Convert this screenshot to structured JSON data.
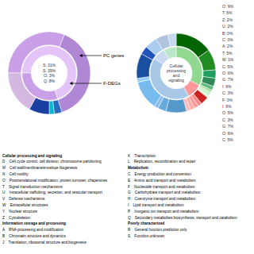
{
  "chart_data": [
    {
      "type": "pie",
      "series": [
        {
          "name": "PC genes",
          "values": [
            31,
            39,
            3,
            2,
            8,
            17
          ],
          "colors": [
            "#c9a0e8",
            "#b087d4",
            "#2a6abf",
            "#00b8d4",
            "#1a3fa0",
            "#d4b8e0"
          ]
        },
        {
          "name": "F-DEGs",
          "values": [
            70,
            30
          ],
          "colors": [
            "#e4c4f8",
            "#c9a0e8"
          ]
        }
      ],
      "annotations": [
        "S: 31%",
        "S: 39%",
        "O: 3%",
        "Q: 8%"
      ]
    },
    {
      "type": "pie",
      "title": "Cellular\nprocessing\nand\nsignaling",
      "series": [
        {
          "values": [
            9.0,
            5.0,
            2.0,
            2.0,
            1.0,
            0.5,
            0.5,
            0.5,
            0.5,
            2.0,
            1.0,
            1.0,
            1.0,
            1.0,
            5.0,
            2.0,
            1.0,
            7.0,
            1.0,
            6.0,
            2.0,
            3.0,
            3.0,
            2.0
          ],
          "colors": [
            "#006400",
            "#228B22",
            "#20a060",
            "#2E8B57",
            "#60b880",
            "#a0d8a0",
            "#b8e8b8",
            "#c8f0c8",
            "#d8f8d8",
            "#cc2222",
            "#ff8888",
            "#ff9999",
            "#ffaaaa",
            "#ffbbbb",
            "#5599cc",
            "#66aadd",
            "#88bbee",
            "#77bbee",
            "#99ccff",
            "#1a4fa0",
            "#2255bb",
            "#aaccee",
            "#b0c4de",
            "#c8d8f0"
          ]
        },
        {
          "values": [
            21.0,
            6.0,
            27.0,
            5.0,
            5.0
          ],
          "colors": [
            "#90D890",
            "#ff9999",
            "#a8c8e8",
            "#c8d8f0",
            "#b8e8c8"
          ]
        }
      ],
      "annotations": [
        "O: 9%",
        "T: 5%",
        "Z: 2%",
        "U: 2%",
        "B: 0%",
        "C: 0%",
        "A: 2%",
        "T: 5%",
        "M: 1%",
        "C: 5%",
        "O: 6%",
        "G: 7%",
        "I: 6%",
        "C: 3%",
        "F: 0%",
        "I: 6%",
        "O: 5%",
        "C: 3%",
        "G: 7%",
        "O: 6%",
        "C: 5%"
      ]
    },
    {
      "type": "text",
      "annotations": [
        "Cellular processing and signaling",
        "D    Cell cycle control, cell division, chromosome partitioning",
        "M    Cell wall/membrane/envelope biogenesis",
        "N    Cell motility",
        "O    Posttranslational modification, protein turnover, chaperones",
        "T    Signal transduction mechanisms",
        "U    Intracellular trafficking, secretion, and vesicular transport",
        "V    Defense mechanisms",
        "W    Extracellular structures",
        "Y    Nuclear structure",
        "Z    Cytoskeleton",
        "Information storage and processing",
        "A    RNA processing and modification",
        "B    Chromatin structure and dynamics",
        "J    Translation, ribosomal structure and biogenesis",
        "K    Transcription",
        "L    Replication, recombination and repair",
        "Metabolism",
        "C    Energy production and conversion",
        "E    Amino acid transport and metabolism",
        "F    Nucleotide transport and metabolism",
        "G    Carbohydrate transport and metabolism",
        "H    Coenzyme transport and metabolism",
        "I    Lipid transport and metabolism",
        "P    Inorganic ion transport and metabolism",
        "Q    Secondary metabolites biosynthesis, transport and catabolism",
        "Poorly characterized",
        "R    General function prediction only",
        "S    Function unknown"
      ]
    }
  ]
}
